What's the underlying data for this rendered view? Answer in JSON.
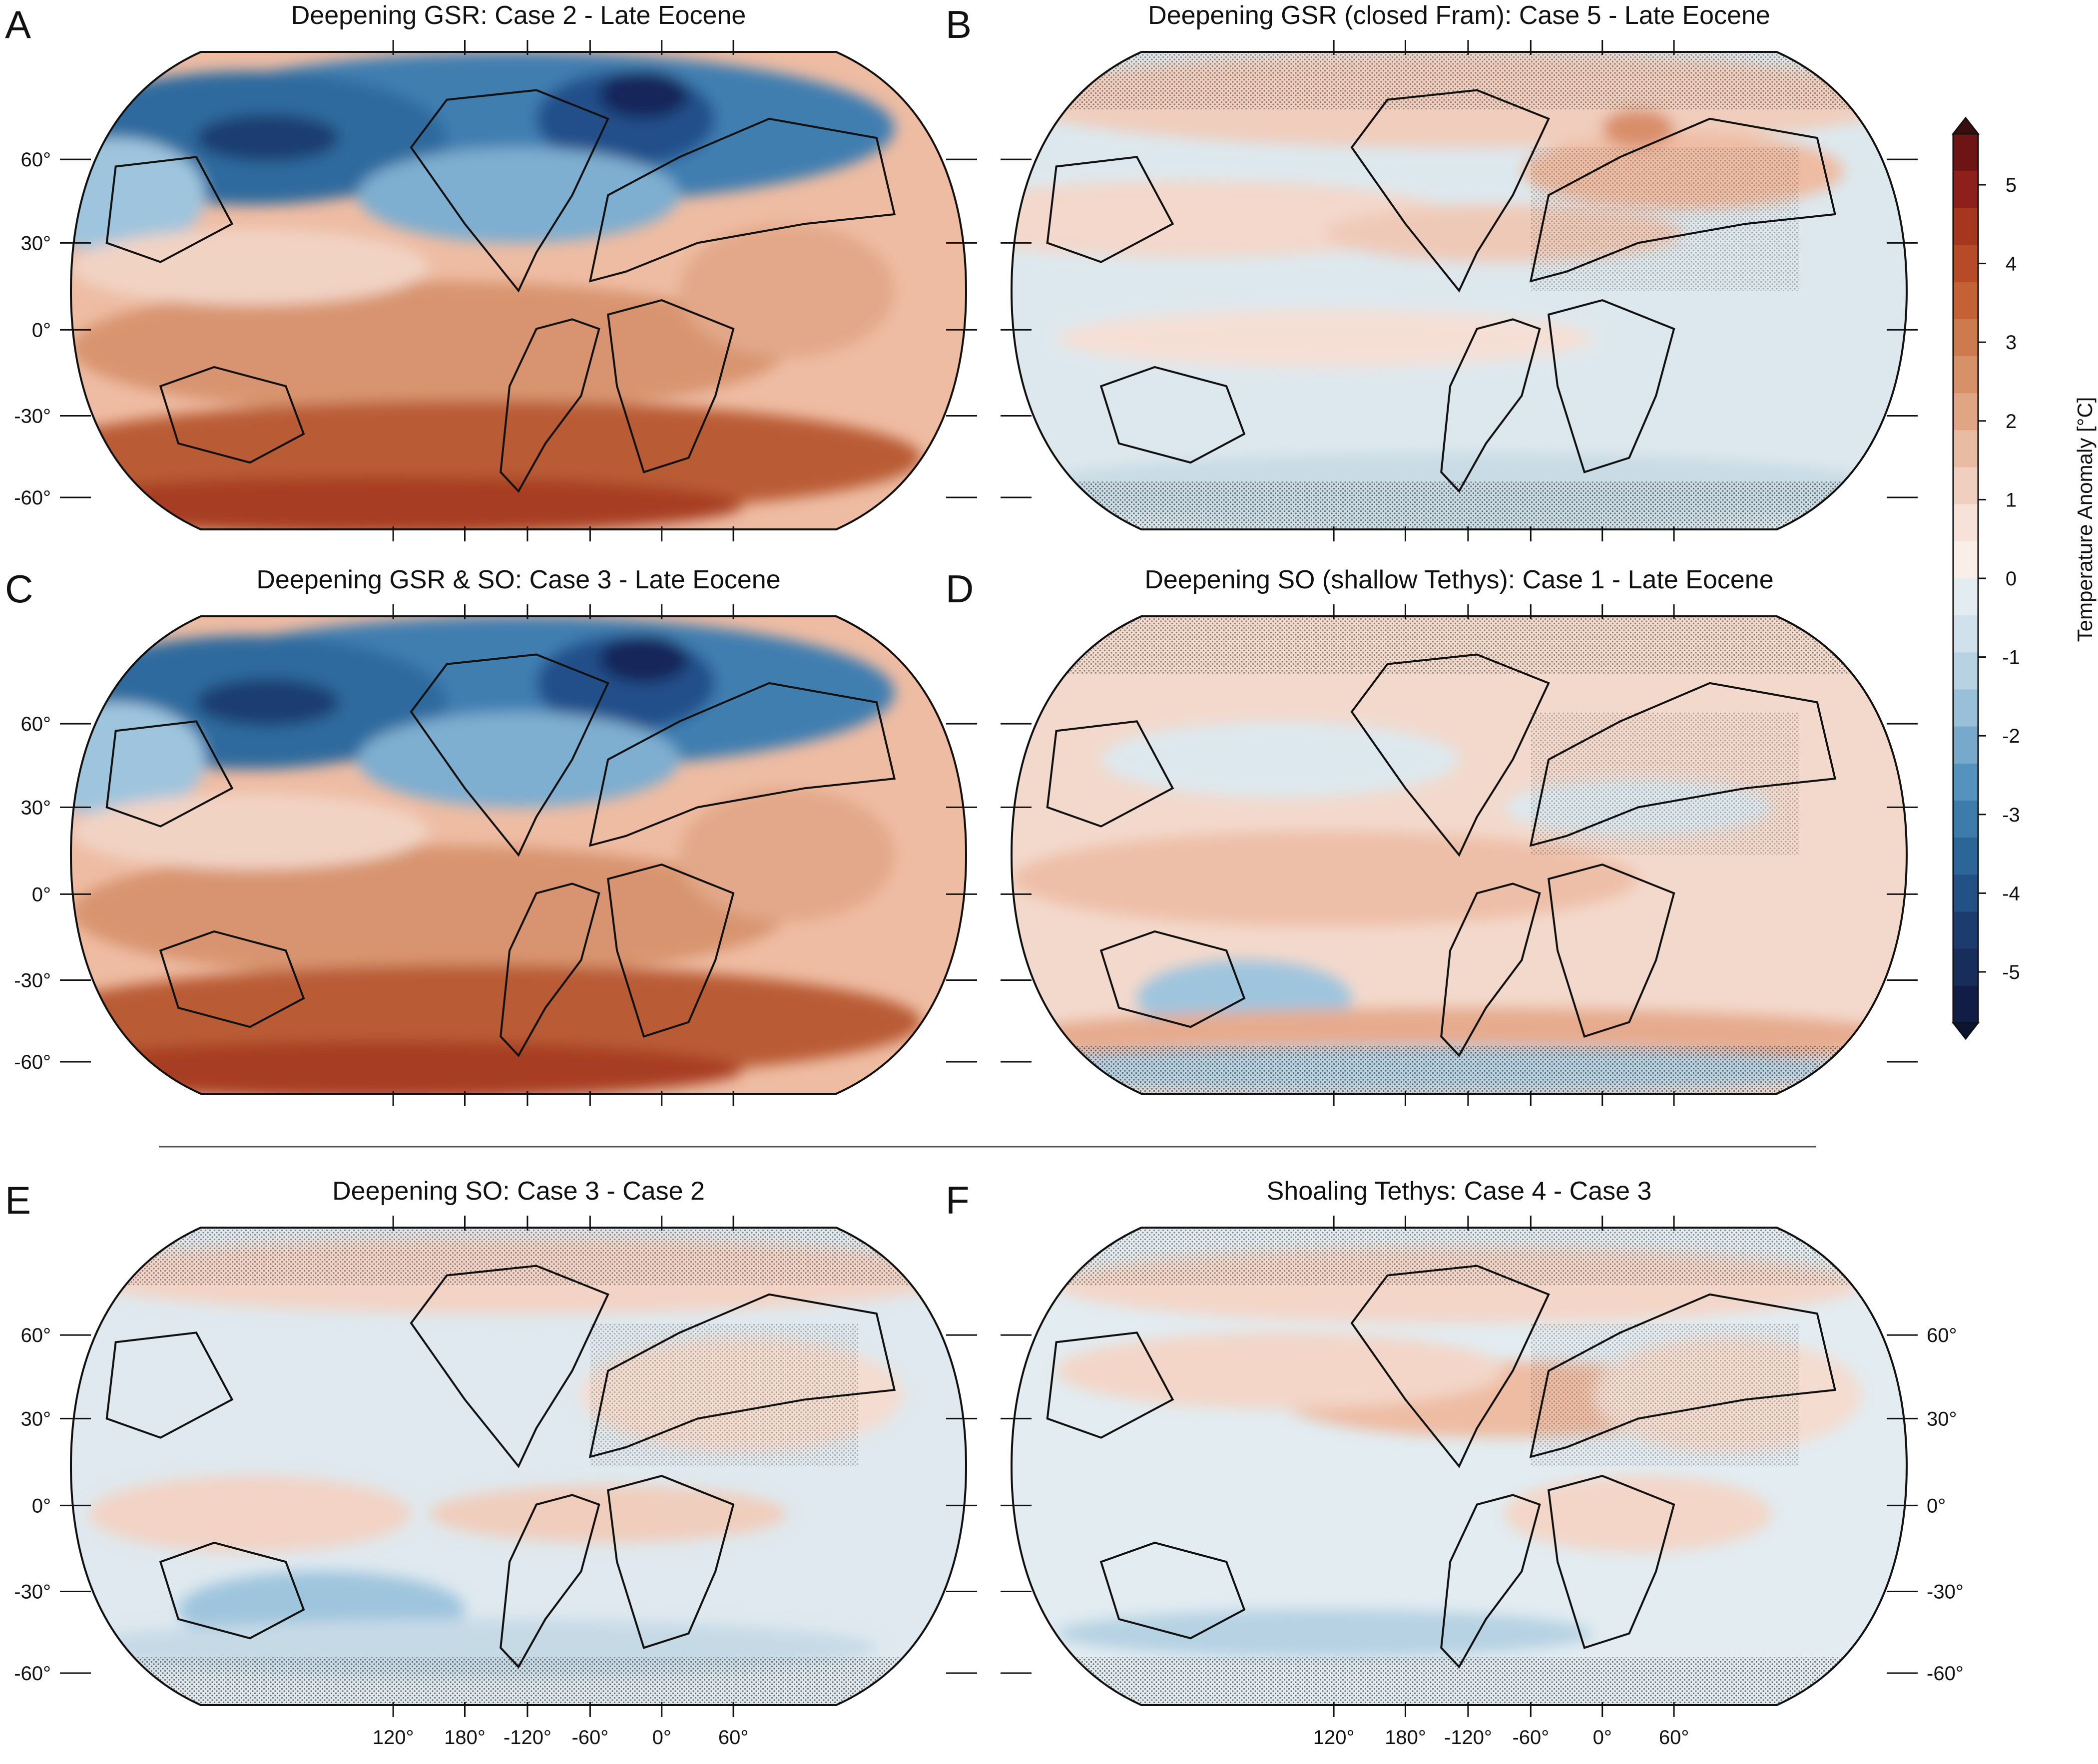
{
  "panels": [
    {
      "letter": "A",
      "title": "Deepening GSR: Case 2 - Late Eocene",
      "pattern": "cold-north"
    },
    {
      "letter": "B",
      "title": "Deepening GSR (closed Fram): Case 5 - Late Eocene",
      "pattern": "weak"
    },
    {
      "letter": "C",
      "title": "Deepening GSR & SO: Case 3 - Late Eocene",
      "pattern": "cold-north"
    },
    {
      "letter": "D",
      "title": "Deepening SO (shallow Tethys): Case 1 - Late Eocene",
      "pattern": "weak-warm"
    },
    {
      "letter": "E",
      "title": "Deepening SO: Case 3  - Case 2",
      "pattern": "weak-cool"
    },
    {
      "letter": "F",
      "title": "Shoaling Tethys: Case 4 - Case 3",
      "pattern": "weak-mixed"
    }
  ],
  "lat_labels": [
    "60°",
    "30°",
    "0°",
    "-30°",
    "-60°"
  ],
  "lon_labels": [
    "120°",
    "180°",
    "-120°",
    "-60°",
    "0°",
    "60°"
  ],
  "colorbar": {
    "title": "Temperature Anomaly [°C]",
    "ticks": [
      "5",
      "4",
      "3",
      "2",
      "1",
      "0",
      "-1",
      "-2",
      "-3",
      "-4",
      "-5"
    ],
    "colors_top_to_bottom": [
      "#6e1414",
      "#8f1f1a",
      "#a7361f",
      "#b84b27",
      "#c46236",
      "#cd7a4f",
      "#d79168",
      "#e0a684",
      "#e8bba2",
      "#f0cfbe",
      "#f6e2d8",
      "#f9eee8",
      "#e3ecf1",
      "#d0e1eb",
      "#b6d2e3",
      "#99c0d9",
      "#77a9cc",
      "#5592bd",
      "#3d7bab",
      "#2c6699",
      "#225186",
      "#1c3c70",
      "#172d5c",
      "#111d47"
    ]
  },
  "chart_data": {
    "type": "heatmap",
    "variable": "Temperature Anomaly [°C]",
    "zlim": [
      -5.5,
      5.5
    ],
    "panels": [
      "A",
      "B",
      "C",
      "D",
      "E",
      "F"
    ]
  }
}
